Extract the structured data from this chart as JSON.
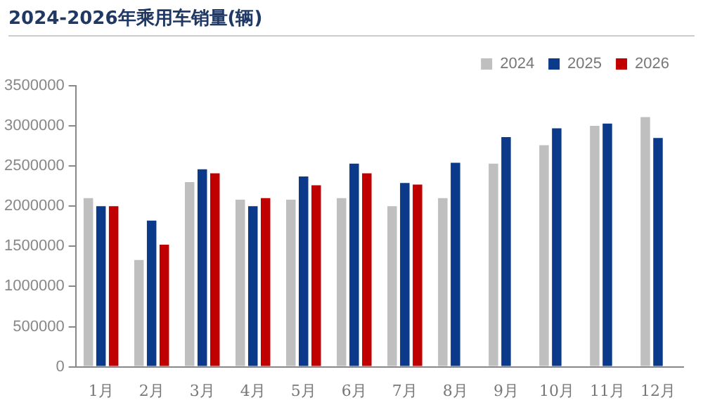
{
  "chart_data": {
    "type": "bar",
    "title": "2024-2026年乘用车销量(辆)",
    "categories": [
      "1月",
      "2月",
      "3月",
      "4月",
      "5月",
      "6月",
      "7月",
      "8月",
      "9月",
      "10月",
      "11月",
      "12月"
    ],
    "series": [
      {
        "name": "2024",
        "color": "#bfbfbf",
        "values": [
          2100000,
          1330000,
          2300000,
          2080000,
          2080000,
          2100000,
          2000000,
          2100000,
          2530000,
          2760000,
          3000000,
          3110000
        ]
      },
      {
        "name": "2025",
        "color": "#0b3a8a",
        "values": [
          2000000,
          1820000,
          2460000,
          2000000,
          2370000,
          2530000,
          2290000,
          2540000,
          2860000,
          2970000,
          3030000,
          2850000
        ]
      },
      {
        "name": "2026",
        "color": "#c00000",
        "values": [
          2000000,
          1520000,
          2410000,
          2100000,
          2260000,
          2410000,
          2270000,
          null,
          null,
          null,
          null,
          null
        ]
      }
    ],
    "ylim": [
      0,
      3500000
    ],
    "yticks": [
      0,
      500000,
      1000000,
      1500000,
      2000000,
      2500000,
      3000000,
      3500000
    ],
    "grid": false,
    "legend": "top right"
  }
}
